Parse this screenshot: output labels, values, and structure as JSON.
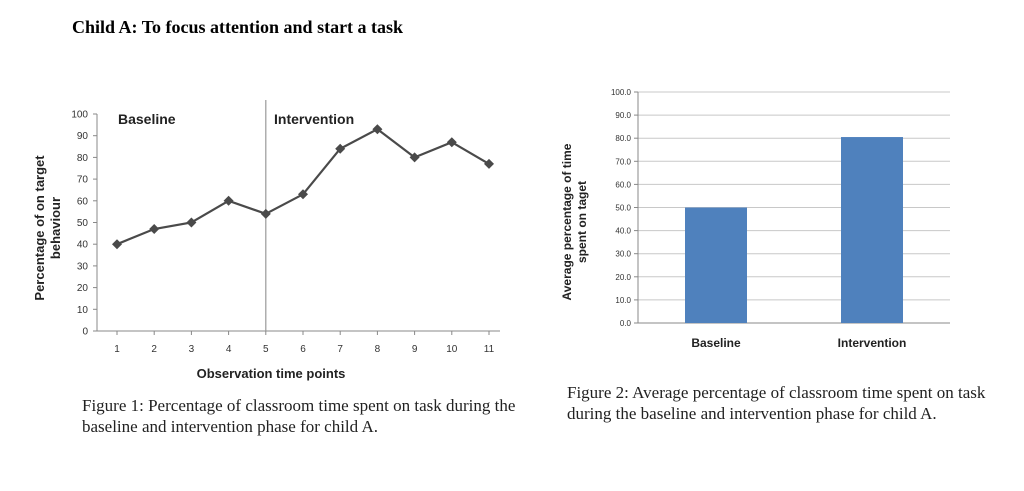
{
  "page_title": "Child A: To focus attention and start a task",
  "figure1": {
    "caption": "Figure 1: Percentage of classroom time spent on task during the baseline and intervention phase for child A."
  },
  "figure2": {
    "caption": "Figure 2: Average percentage of classroom time spent on task during the baseline and intervention phase for child A."
  },
  "colors": {
    "line_series": "#4a4a4a",
    "bar_fill": "#4f81bd",
    "phase_divider": "#999999"
  },
  "chart_data": [
    {
      "type": "line",
      "xlabel": "Observation time points",
      "ylabel_lines": [
        "Percentage of on target",
        "behaviour"
      ],
      "x": [
        1,
        2,
        3,
        4,
        5,
        6,
        7,
        8,
        9,
        10,
        11
      ],
      "x_tick_labels": [
        "1",
        "2",
        "3",
        "4",
        "5",
        "6",
        "7",
        "8",
        "9",
        "10",
        "11"
      ],
      "series": [
        {
          "values": [
            40,
            47,
            50,
            60,
            54,
            63,
            84,
            93,
            80,
            87,
            77
          ]
        }
      ],
      "ylim": [
        0,
        100
      ],
      "y_ticks": [
        0,
        10,
        20,
        30,
        40,
        50,
        60,
        70,
        80,
        90,
        100
      ],
      "y_tick_labels": [
        "0",
        "10",
        "20",
        "30",
        "40",
        "50",
        "60",
        "70",
        "80",
        "90",
        "100"
      ],
      "phase_change_after_x": 5,
      "annotations": [
        "Baseline",
        "Intervention"
      ],
      "grid": false,
      "marker": "diamond"
    },
    {
      "type": "bar",
      "categories": [
        "Baseline",
        "Intervention"
      ],
      "values": [
        50.0,
        80.5
      ],
      "ylabel_lines": [
        "Average percentage of time",
        "spent on taget"
      ],
      "ylim": [
        0,
        100
      ],
      "y_ticks": [
        0,
        10,
        20,
        30,
        40,
        50,
        60,
        70,
        80,
        90,
        100
      ],
      "y_tick_labels": [
        "0.0",
        "10.0",
        "20.0",
        "30.0",
        "40.0",
        "50.0",
        "60.0",
        "70.0",
        "80.0",
        "90.0",
        "100.0"
      ],
      "grid": true
    }
  ]
}
